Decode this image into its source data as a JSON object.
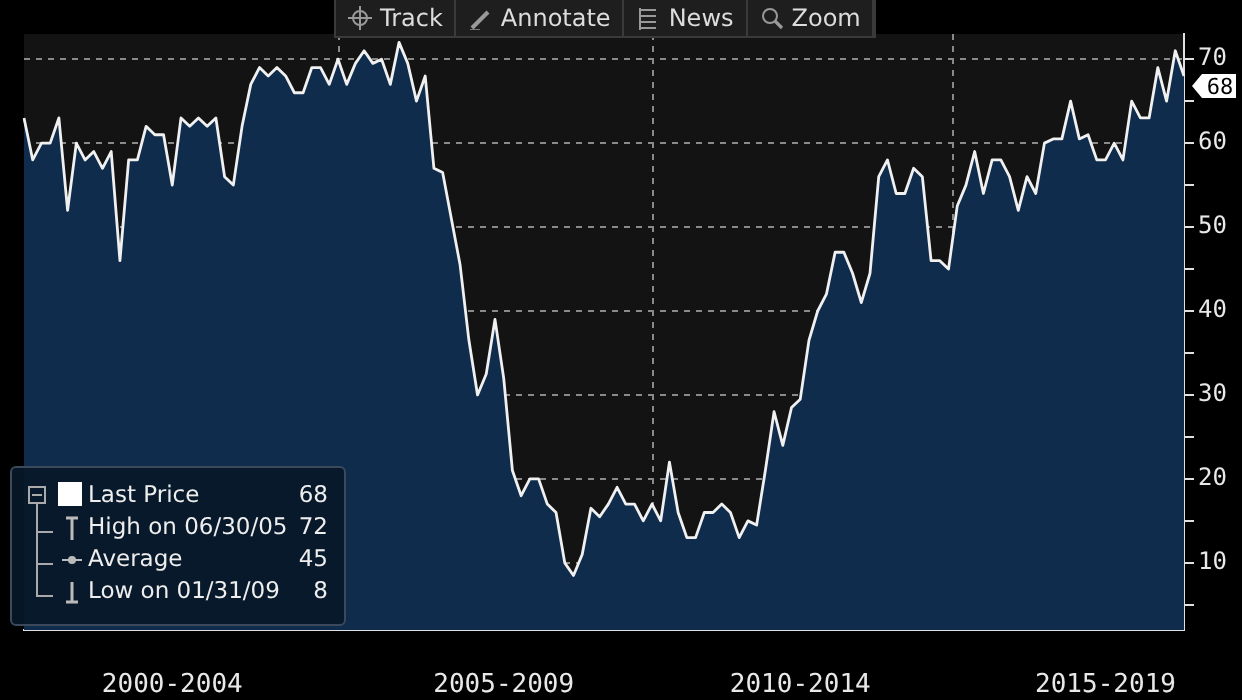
{
  "chart_data": {
    "type": "area",
    "categories": [
      null,
      null,
      null,
      null,
      null,
      null,
      null,
      null,
      null,
      null,
      null,
      null,
      null,
      null,
      null,
      null,
      null,
      "2000-2004",
      null,
      null,
      null,
      null,
      null,
      null,
      null,
      null,
      null,
      null,
      null,
      null,
      null,
      null,
      null,
      null,
      null,
      null,
      null,
      null,
      null,
      null,
      null,
      null,
      null,
      null,
      null,
      null,
      null,
      null,
      null,
      null,
      null,
      null,
      null,
      null,
      null,
      "2005-2009",
      null,
      null,
      null,
      null,
      null,
      null,
      null,
      null,
      null,
      null,
      null,
      null,
      null,
      null,
      null,
      null,
      null,
      null,
      null,
      null,
      null,
      null,
      null,
      null,
      null,
      null,
      null,
      null,
      null,
      null,
      null,
      null,
      null,
      "2010-2014",
      null,
      null,
      null,
      null,
      null,
      null,
      null,
      null,
      null,
      null,
      null,
      null,
      null,
      null,
      null,
      null,
      null,
      null,
      null,
      null,
      null,
      null,
      null,
      null,
      null,
      null,
      null,
      null,
      null,
      null,
      null,
      null,
      null,
      null,
      "2015-2019",
      null,
      null,
      null,
      null,
      null,
      null,
      null,
      null,
      null
    ],
    "series": [
      {
        "name": "Last Price",
        "color": "#102c4c",
        "values": [
          63,
          58,
          60,
          60,
          63,
          52,
          60,
          58,
          59,
          57,
          59,
          46,
          58,
          58,
          62,
          61,
          61,
          55,
          63,
          62,
          63,
          62,
          63,
          56,
          55,
          62,
          67,
          69,
          68,
          69,
          68,
          66,
          66,
          69,
          69,
          67,
          70,
          67,
          69.5,
          71,
          69.5,
          70,
          67,
          72,
          69.5,
          65,
          68,
          57,
          56.5,
          51,
          45.5,
          36.6,
          30,
          32.5,
          39,
          32,
          21,
          18,
          20,
          20,
          17,
          16,
          10,
          8.5,
          11,
          16.5,
          15.5,
          17,
          19,
          17,
          17,
          15,
          17,
          15,
          22,
          16,
          13,
          13,
          16,
          16,
          17,
          16,
          13,
          15,
          14.5,
          21,
          28,
          24,
          28.5,
          29.5,
          36.5,
          40,
          42,
          47,
          47,
          44.5,
          41,
          44.5,
          56,
          58,
          54,
          54,
          57,
          56,
          46,
          46,
          45,
          52.5,
          55,
          59,
          54,
          58,
          58,
          56,
          52,
          56,
          54,
          60,
          60.5,
          60.5,
          65,
          60.5,
          61,
          58,
          58,
          60,
          58,
          65,
          63,
          63,
          69,
          65,
          71,
          68
        ]
      }
    ],
    "ylim": [
      2,
      73
    ],
    "yticks": [
      {
        "value": 5,
        "label": null
      },
      10,
      {
        "value": 15,
        "label": null
      },
      20,
      {
        "value": 25,
        "label": null
      },
      30,
      {
        "value": 35,
        "label": null
      },
      40,
      {
        "value": 45,
        "label": null
      },
      50,
      {
        "value": 55,
        "label": null
      },
      60,
      {
        "value": 65,
        "label": null
      },
      70
    ],
    "grid": true,
    "legend": "bottom left",
    "annotations": [
      "68",
      "68",
      "High on 06/30/05",
      "72",
      "Average",
      "45",
      "Low on 01/31/09",
      "8",
      "Track",
      "Annotate",
      "News",
      "Zoom"
    ]
  }
}
